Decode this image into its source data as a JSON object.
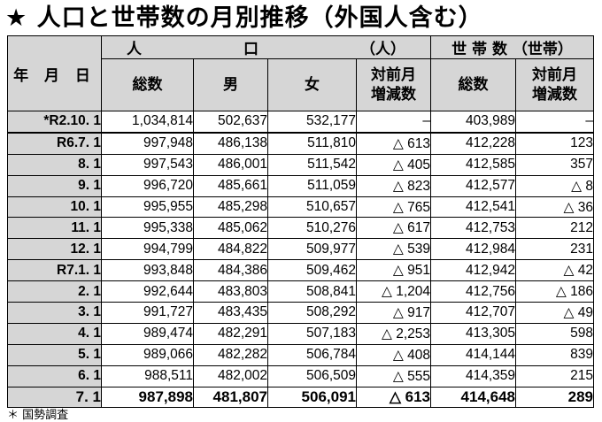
{
  "title": "★ 人口と世帯数の月別推移（外国人含む）",
  "header": {
    "date_label": "年 月 日",
    "population_group": [
      "人",
      "口",
      "（人）"
    ],
    "households_group": "世 帯 数 （世帯）",
    "pop_total": "総数",
    "pop_male": "男",
    "pop_female": "女",
    "pop_change": "対前月\n増減数",
    "hh_total": "総数",
    "hh_change": "対前月\n増減数"
  },
  "rows": [
    {
      "date": "*R2.10. 1",
      "total": "1,034,814",
      "male": "502,637",
      "female": "532,177",
      "change": "–",
      "hh_total": "403,989",
      "hh_change": "–"
    },
    {
      "date": "R6.7. 1",
      "total": "997,948",
      "male": "486,138",
      "female": "511,810",
      "change": "△ 613",
      "hh_total": "412,228",
      "hh_change": "123"
    },
    {
      "date": "8. 1",
      "total": "997,543",
      "male": "486,001",
      "female": "511,542",
      "change": "△ 405",
      "hh_total": "412,585",
      "hh_change": "357"
    },
    {
      "date": "9. 1",
      "total": "996,720",
      "male": "485,661",
      "female": "511,059",
      "change": "△ 823",
      "hh_total": "412,577",
      "hh_change": "△ 8"
    },
    {
      "date": "10. 1",
      "total": "995,955",
      "male": "485,298",
      "female": "510,657",
      "change": "△ 765",
      "hh_total": "412,541",
      "hh_change": "△ 36"
    },
    {
      "date": "11. 1",
      "total": "995,338",
      "male": "485,062",
      "female": "510,276",
      "change": "△ 617",
      "hh_total": "412,753",
      "hh_change": "212"
    },
    {
      "date": "12. 1",
      "total": "994,799",
      "male": "484,822",
      "female": "509,977",
      "change": "△ 539",
      "hh_total": "412,984",
      "hh_change": "231"
    },
    {
      "date": "R7.1. 1",
      "total": "993,848",
      "male": "484,386",
      "female": "509,462",
      "change": "△ 951",
      "hh_total": "412,942",
      "hh_change": "△ 42"
    },
    {
      "date": "2. 1",
      "total": "992,644",
      "male": "483,803",
      "female": "508,841",
      "change": "△ 1,204",
      "hh_total": "412,756",
      "hh_change": "△ 186"
    },
    {
      "date": "3. 1",
      "total": "991,727",
      "male": "483,435",
      "female": "508,292",
      "change": "△ 917",
      "hh_total": "412,707",
      "hh_change": "△ 49"
    },
    {
      "date": "4. 1",
      "total": "989,474",
      "male": "482,291",
      "female": "507,183",
      "change": "△ 2,253",
      "hh_total": "413,305",
      "hh_change": "598"
    },
    {
      "date": "5. 1",
      "total": "989,066",
      "male": "482,282",
      "female": "506,784",
      "change": "△ 408",
      "hh_total": "414,144",
      "hh_change": "839"
    },
    {
      "date": "6. 1",
      "total": "988,511",
      "male": "482,002",
      "female": "506,509",
      "change": "△ 555",
      "hh_total": "414,359",
      "hh_change": "215"
    },
    {
      "date": "7. 1",
      "total": "987,898",
      "male": "481,807",
      "female": "506,091",
      "change": "△ 613",
      "hh_total": "414,648",
      "hh_change": "289"
    }
  ],
  "footnote": "＊ 国勢調査"
}
